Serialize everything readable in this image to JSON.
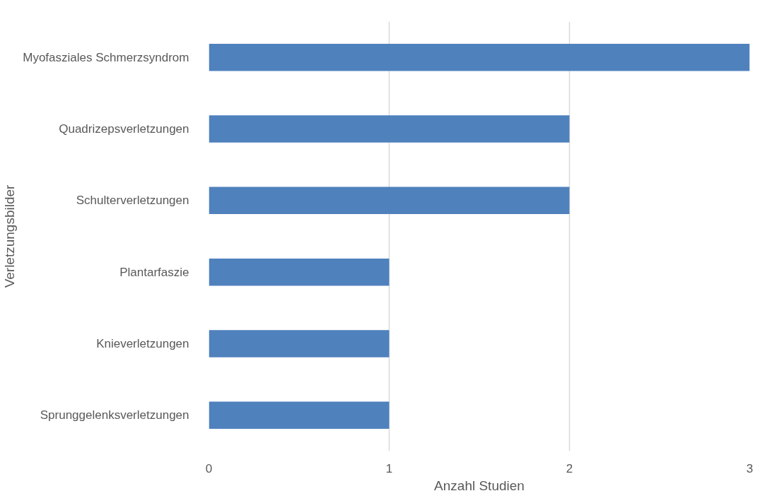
{
  "chart_data": {
    "type": "bar",
    "orientation": "horizontal",
    "xlabel": "Anzahl Studien",
    "ylabel": "Verletzungsbilder",
    "categories": [
      "Myofasziales Schmerzsyndrom",
      "Quadrizepsverletzungen",
      "Schulterverletzungen",
      "Plantarfaszie",
      "Knieverletzungen",
      "Sprunggelenksverletzungen"
    ],
    "values": [
      3,
      2,
      2,
      1,
      1,
      1
    ],
    "color": "#4f81bd",
    "xlim": [
      0,
      3
    ],
    "xticks": [
      0,
      1,
      2,
      3
    ],
    "grid": "x"
  }
}
